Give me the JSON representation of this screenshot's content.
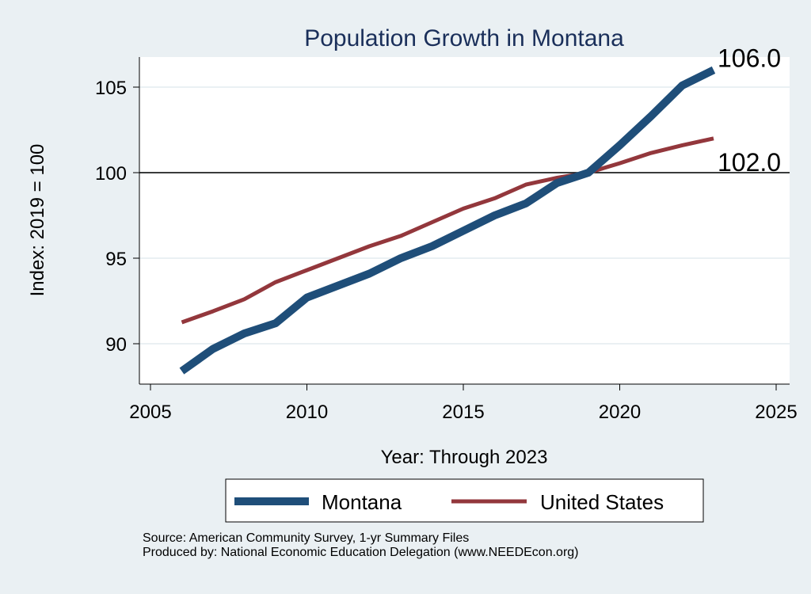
{
  "chart_data": {
    "type": "line",
    "title": "Population Growth in Montana",
    "xlabel": "Year: Through 2023",
    "ylabel": "Index: 2019 = 100",
    "xlim": [
      2005,
      2025
    ],
    "ylim": [
      87.5,
      106.8
    ],
    "xticks": [
      2005,
      2010,
      2015,
      2020,
      2025
    ],
    "yticks": [
      90,
      95,
      100,
      105
    ],
    "reference_line": 100,
    "grid": true,
    "legend_position": "bottom",
    "x": [
      2006,
      2007,
      2008,
      2009,
      2010,
      2011,
      2012,
      2013,
      2014,
      2015,
      2016,
      2017,
      2018,
      2019,
      2020,
      2021,
      2022,
      2023
    ],
    "series": [
      {
        "name": "Montana",
        "color": "#1f4e79",
        "end_label": "106.0",
        "values": [
          88.4,
          89.7,
          90.6,
          91.2,
          92.7,
          93.4,
          94.1,
          95.0,
          95.7,
          96.6,
          97.5,
          98.2,
          99.4,
          100.0,
          101.6,
          103.3,
          105.1,
          106.0
        ]
      },
      {
        "name": "United States",
        "color": "#93373c",
        "end_label": "102.0",
        "values": [
          91.25,
          91.9,
          92.6,
          93.6,
          94.3,
          95.0,
          95.7,
          96.3,
          97.1,
          97.9,
          98.5,
          99.3,
          99.7,
          100.0,
          100.55,
          101.15,
          101.6,
          102.0
        ]
      }
    ]
  },
  "notes": {
    "source": "Source: American Community Survey, 1-yr Summary Files",
    "produced": "Produced by: National Economic Education Delegation (www.NEEDEcon.org)"
  }
}
